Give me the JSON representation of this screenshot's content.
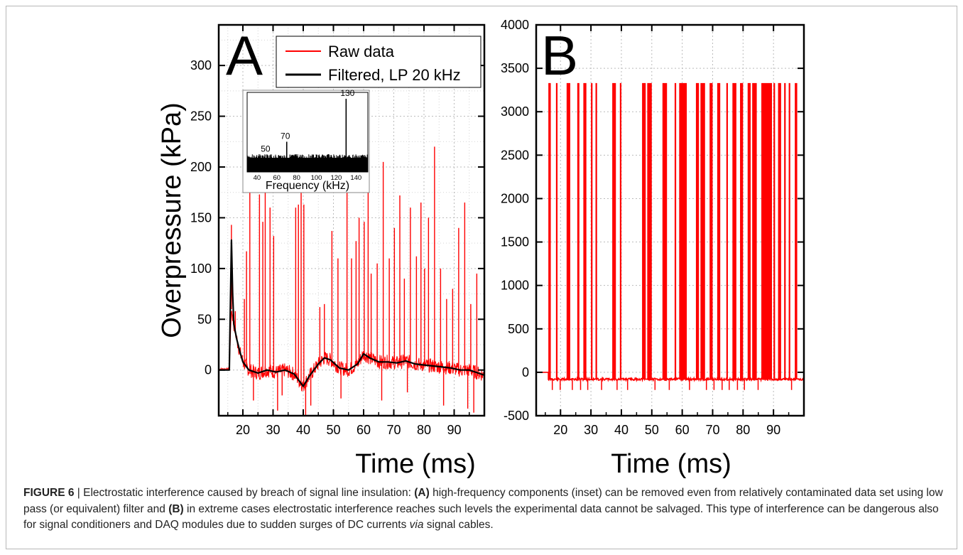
{
  "caption": {
    "figure_label": "FIGURE 6",
    "separator": " | ",
    "intro": "Electrostatic interference caused by breach of signal line insulation: ",
    "tag_a": "(A)",
    "text_a": " high-frequency components (inset) can be removed even from relatively contaminated data set using low pass (or equivalent) filter and ",
    "tag_b": "(B)",
    "text_b": " in extreme cases electrostatic interference reaches such levels the experimental data cannot be salvaged. This type of interference can be dangerous also for signal conditioners and DAQ modules due to sudden surges of DC currents ",
    "via": "via",
    "end": " signal cables."
  },
  "chart_data": [
    {
      "type": "line",
      "panel_label": "A",
      "xlabel": "Time (ms)",
      "ylabel": "Overpressure (kPa)",
      "xlim": [
        12,
        100
      ],
      "ylim": [
        -45,
        340
      ],
      "xticks": [
        20,
        30,
        40,
        50,
        60,
        70,
        80,
        90
      ],
      "yticks": [
        0,
        50,
        100,
        150,
        200,
        250,
        300
      ],
      "grid": true,
      "legend_position": "top-right",
      "series": [
        {
          "name": "Raw data",
          "color": "#ff0000",
          "baseline_x": [
            12,
            15.5,
            16.2,
            17,
            18,
            19,
            20,
            22,
            25,
            28,
            31,
            34,
            37,
            39,
            40,
            42,
            45,
            47,
            49,
            52,
            55,
            58,
            60,
            62,
            65,
            68,
            71,
            74,
            77,
            80,
            83,
            86,
            89,
            92,
            95,
            98,
            100
          ],
          "baseline_y": [
            1,
            1,
            60,
            45,
            30,
            18,
            8,
            0,
            -3,
            0,
            -2,
            0,
            -4,
            -12,
            -16,
            -6,
            6,
            12,
            10,
            2,
            0,
            6,
            16,
            12,
            8,
            8,
            7,
            9,
            6,
            5,
            4,
            3,
            2,
            0,
            0,
            -3,
            -5
          ],
          "spikes": [
            {
              "x": 16.2,
              "y": 143
            },
            {
              "x": 17.5,
              "y": 58
            },
            {
              "x": 20.5,
              "y": 70
            },
            {
              "x": 21.2,
              "y": 117
            },
            {
              "x": 22.3,
              "y": 175
            },
            {
              "x": 23.5,
              "y": -30
            },
            {
              "x": 25.5,
              "y": 173
            },
            {
              "x": 26.6,
              "y": 146
            },
            {
              "x": 27.4,
              "y": 190
            },
            {
              "x": 29.0,
              "y": 160
            },
            {
              "x": 30.2,
              "y": 132
            },
            {
              "x": 31.5,
              "y": -40
            },
            {
              "x": 33.0,
              "y": -25
            },
            {
              "x": 37.5,
              "y": 160
            },
            {
              "x": 38.4,
              "y": 163
            },
            {
              "x": 39.3,
              "y": 210
            },
            {
              "x": 40.2,
              "y": 163
            },
            {
              "x": 40.8,
              "y": -45
            },
            {
              "x": 45.5,
              "y": 62
            },
            {
              "x": 47.0,
              "y": 65
            },
            {
              "x": 49.5,
              "y": 137
            },
            {
              "x": 51.5,
              "y": 110
            },
            {
              "x": 54.5,
              "y": 180
            },
            {
              "x": 56.0,
              "y": 110
            },
            {
              "x": 57.5,
              "y": 127
            },
            {
              "x": 58.5,
              "y": 150
            },
            {
              "x": 60.2,
              "y": 146
            },
            {
              "x": 61.5,
              "y": 176
            },
            {
              "x": 62.5,
              "y": 95
            },
            {
              "x": 64.5,
              "y": 105
            },
            {
              "x": 66.5,
              "y": 205
            },
            {
              "x": 68.5,
              "y": 110
            },
            {
              "x": 70.2,
              "y": 140
            },
            {
              "x": 72.0,
              "y": 172
            },
            {
              "x": 73.5,
              "y": 90
            },
            {
              "x": 75.5,
              "y": 160
            },
            {
              "x": 77.5,
              "y": 112
            },
            {
              "x": 79.0,
              "y": 165
            },
            {
              "x": 80.2,
              "y": 100
            },
            {
              "x": 81.5,
              "y": 150
            },
            {
              "x": 83.5,
              "y": 220
            },
            {
              "x": 85.5,
              "y": 100
            },
            {
              "x": 87.5,
              "y": 70
            },
            {
              "x": 89.5,
              "y": 80
            },
            {
              "x": 91.5,
              "y": 140
            },
            {
              "x": 93.5,
              "y": 165
            },
            {
              "x": 95.5,
              "y": 65
            },
            {
              "x": 97.5,
              "y": 95
            },
            {
              "x": 42.5,
              "y": -35
            },
            {
              "x": 52.5,
              "y": -28
            },
            {
              "x": 66.0,
              "y": -30
            },
            {
              "x": 74.5,
              "y": -22
            },
            {
              "x": 86.5,
              "y": -35
            },
            {
              "x": 94.5,
              "y": -38
            },
            {
              "x": 96.5,
              "y": -42
            }
          ]
        },
        {
          "name": "Filtered, LP 20 kHz",
          "color": "#000000",
          "x": [
            12,
            15.5,
            16.2,
            16.6,
            17,
            18,
            19,
            20,
            22,
            25,
            28,
            31,
            34,
            37,
            39,
            40,
            42,
            45,
            47,
            49,
            52,
            55,
            58,
            60,
            62,
            65,
            68,
            71,
            74,
            77,
            80,
            83,
            86,
            89,
            92,
            95,
            98,
            100
          ],
          "y": [
            0,
            0,
            128,
            75,
            45,
            30,
            18,
            8,
            0,
            -3,
            0,
            -2,
            0,
            -4,
            -12,
            -16,
            -6,
            6,
            12,
            10,
            2,
            0,
            6,
            16,
            12,
            8,
            8,
            7,
            9,
            6,
            5,
            4,
            3,
            2,
            0,
            0,
            -3,
            -5
          ]
        }
      ],
      "inset": {
        "xlabel": "Frequency (kHz)",
        "xlim": [
          30,
          152
        ],
        "xticks": [
          40,
          50,
          60,
          70,
          80,
          90,
          100,
          110,
          120,
          130,
          140
        ],
        "xtick_labels": [
          "40",
          "60",
          "80",
          "100",
          "120",
          "140"
        ],
        "peaks": [
          {
            "x": 50,
            "label": "50",
            "height": 0.22
          },
          {
            "x": 70,
            "label": "70",
            "height": 0.38
          },
          {
            "x": 130,
            "label": "130",
            "height": 0.92
          }
        ]
      }
    },
    {
      "type": "line",
      "panel_label": "B",
      "xlabel": "Time (ms)",
      "ylabel": "",
      "xlim": [
        12,
        100
      ],
      "ylim": [
        -500,
        4000
      ],
      "xticks": [
        20,
        30,
        40,
        50,
        60,
        70,
        80,
        90
      ],
      "yticks": [
        -500,
        0,
        500,
        1000,
        1500,
        2000,
        2500,
        3000,
        3500,
        4000
      ],
      "grid": true,
      "series": [
        {
          "name": "",
          "color": "#ff0000",
          "saturation": 3330,
          "baseline": -80,
          "saturated_blocks": [
            [
              16.0,
              16.8
            ],
            [
              18.5,
              19.0
            ],
            [
              22.0,
              23.2
            ],
            [
              25.5,
              26.2
            ],
            [
              27.5,
              28.5
            ],
            [
              30.0,
              30.3
            ],
            [
              31.5,
              32.0
            ],
            [
              37.0,
              38.2
            ],
            [
              39.5,
              40.0
            ],
            [
              46.8,
              48.0
            ],
            [
              48.5,
              50.0
            ],
            [
              53.5,
              55.0
            ],
            [
              57.5,
              58.0
            ],
            [
              59.0,
              61.5
            ],
            [
              64.5,
              65.5
            ],
            [
              66.0,
              67.5
            ],
            [
              69.0,
              70.0
            ],
            [
              71.5,
              72.5
            ],
            [
              74.5,
              75.0
            ],
            [
              76.5,
              77.8
            ],
            [
              79.0,
              80.0
            ],
            [
              81.5,
              82.5
            ],
            [
              83.0,
              84.5
            ],
            [
              86.0,
              89.5
            ],
            [
              90.0,
              90.4
            ],
            [
              91.5,
              92.5
            ],
            [
              93.5,
              94.0
            ],
            [
              95.0,
              95.5
            ],
            [
              97.0,
              97.8
            ]
          ]
        }
      ]
    }
  ]
}
